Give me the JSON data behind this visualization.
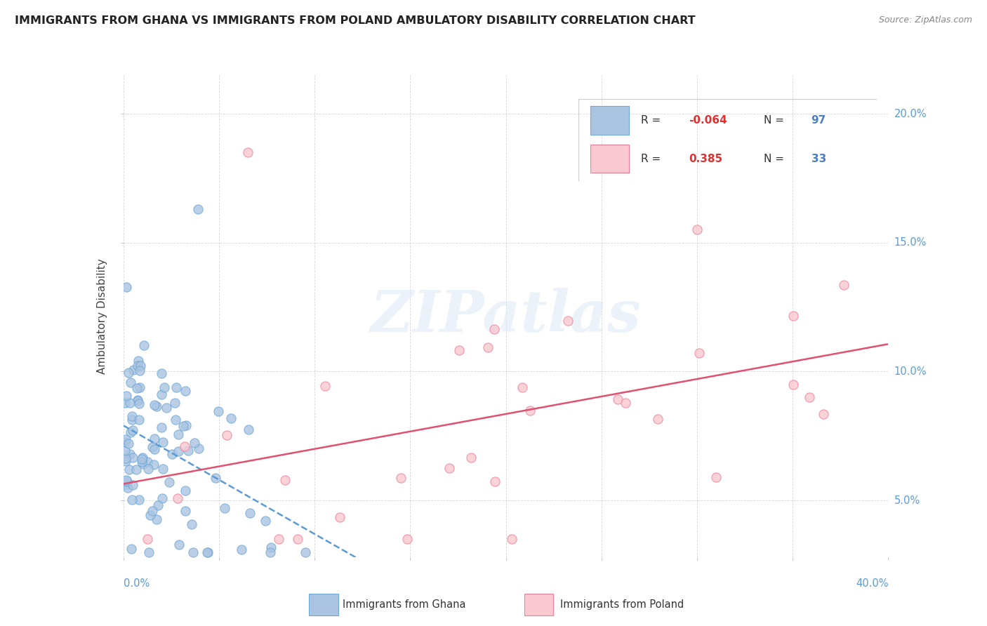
{
  "title": "IMMIGRANTS FROM GHANA VS IMMIGRANTS FROM POLAND AMBULATORY DISABILITY CORRELATION CHART",
  "source": "Source: ZipAtlas.com",
  "ylabel": "Ambulatory Disability",
  "xlim": [
    0.0,
    0.4
  ],
  "ylim": [
    0.028,
    0.215
  ],
  "ghana_R": -0.064,
  "ghana_N": 97,
  "poland_R": 0.385,
  "poland_N": 33,
  "ghana_color": "#aac4e2",
  "ghana_edge": "#6fa8d5",
  "poland_color": "#f9c8d0",
  "poland_edge": "#f08098",
  "ghana_line_color": "#5b9bd5",
  "poland_line_color": "#e05070",
  "ytick_values": [
    0.05,
    0.1,
    0.15,
    0.2
  ],
  "ytick_labels": [
    "5.0%",
    "10.0%",
    "15.0%",
    "20.0%"
  ],
  "xtick_left": "0.0%",
  "xtick_right": "40.0%",
  "tick_color": "#5b9bd5",
  "watermark_text": "ZIPatlas",
  "legend_R_color": "#e03030",
  "legend_N_color": "#4a7fc4"
}
